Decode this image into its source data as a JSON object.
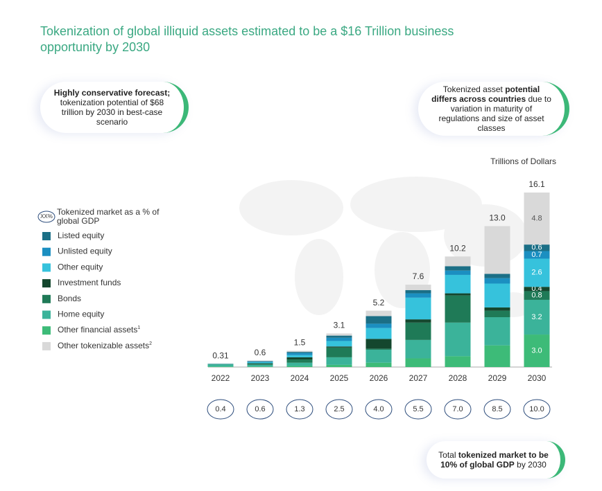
{
  "chart_data": {
    "type": "stacked_bar",
    "title": "Tokenization of global illiquid assets estimated to be a $16 Trillion business opportunity by 2030",
    "unit_label": "Trillions of Dollars",
    "categories": [
      "2022",
      "2023",
      "2024",
      "2025",
      "2026",
      "2027",
      "2028",
      "2029",
      "2030"
    ],
    "series": [
      {
        "name": "Listed equity",
        "color": "#1b6f86",
        "values": [
          0.01,
          0.05,
          0.1,
          0.2,
          0.7,
          0.3,
          0.4,
          0.4,
          0.6
        ],
        "value_labels": [
          null,
          null,
          null,
          null,
          null,
          null,
          null,
          null,
          "0.6"
        ]
      },
      {
        "name": "Unlisted equity",
        "color": "#1b8fc1",
        "values": [
          0.01,
          0.05,
          0.2,
          0.3,
          0.4,
          0.4,
          0.4,
          0.5,
          0.7
        ],
        "value_labels": [
          null,
          null,
          null,
          null,
          null,
          null,
          null,
          null,
          "0.7"
        ]
      },
      {
        "name": "Other equity",
        "color": "#36c2dc",
        "values": [
          0.01,
          0.1,
          0.2,
          0.5,
          1.0,
          2.0,
          1.7,
          2.2,
          2.6
        ],
        "value_labels": [
          null,
          null,
          null,
          null,
          null,
          null,
          null,
          null,
          "2.6"
        ]
      },
      {
        "name": "Investment funds",
        "color": "#14472e",
        "values": [
          0.01,
          0.05,
          0.2,
          0.1,
          0.9,
          0.3,
          0.2,
          0.3,
          0.4
        ],
        "value_labels": [
          null,
          null,
          null,
          null,
          null,
          null,
          null,
          null,
          "0.4"
        ]
      },
      {
        "name": "Bonds",
        "color": "#1f7a57",
        "values": [
          0.02,
          0.1,
          0.3,
          0.9,
          0.1,
          1.6,
          2.5,
          0.6,
          0.8
        ],
        "value_labels": [
          null,
          null,
          null,
          null,
          null,
          null,
          null,
          null,
          "0.8"
        ]
      },
      {
        "name": "Home equity",
        "color": "#3bb39a",
        "values": [
          0.2,
          0.15,
          0.3,
          0.7,
          1.2,
          1.7,
          3.1,
          2.6,
          3.2
        ],
        "value_labels": [
          null,
          null,
          null,
          null,
          null,
          null,
          null,
          null,
          "3.2"
        ]
      },
      {
        "name": "Other financial assets",
        "footnote": "1",
        "color": "#3dbb78",
        "values": [
          0.05,
          0.05,
          0.1,
          0.2,
          0.4,
          0.8,
          1.0,
          2.0,
          3.0
        ],
        "value_labels": [
          null,
          null,
          null,
          null,
          null,
          null,
          null,
          null,
          "3.0"
        ]
      },
      {
        "name": "Other tokenizable assets",
        "footnote": "2",
        "color": "#d9d9d9",
        "values": [
          0,
          0.05,
          0.1,
          0.2,
          0.5,
          0.5,
          0.9,
          4.4,
          4.8
        ],
        "value_labels": [
          null,
          null,
          null,
          null,
          null,
          null,
          null,
          null,
          "4.8"
        ]
      }
    ],
    "totals": [
      0.31,
      0.6,
      1.5,
      3.1,
      5.2,
      7.6,
      10.2,
      13.0,
      16.1
    ],
    "total_labels": [
      "0.31",
      "0.6",
      "1.5",
      "3.1",
      "5.2",
      "7.6",
      "10.2",
      "13.0",
      "16.1"
    ],
    "gdp_legend": {
      "icon": "XX%",
      "label": "Tokenized market as a % of global GDP"
    },
    "gdp_pct": [
      0.4,
      0.6,
      1.3,
      2.5,
      4.0,
      5.5,
      7.0,
      8.5,
      10.0
    ],
    "gdp_pct_labels": [
      "0.4",
      "0.6",
      "1.3",
      "2.5",
      "4.0",
      "5.5",
      "7.0",
      "8.5",
      "10.0"
    ],
    "callouts": [
      {
        "parts": [
          {
            "text": "Highly conservative forecast;",
            "bold": true
          },
          {
            "text": " tokenization potential of $68 trillion by 2030 in best-case scenario",
            "bold": false
          }
        ]
      },
      {
        "parts": [
          {
            "text": "Tokenized asset ",
            "bold": false
          },
          {
            "text": "potential differs across countries",
            "bold": true
          },
          {
            "text": " due to variation in maturity of regulations and size of asset classes",
            "bold": false
          }
        ]
      },
      {
        "parts": [
          {
            "text": "Total ",
            "bold": false
          },
          {
            "text": "tokenized market to be 10% of global GDP",
            "bold": true
          },
          {
            "text": " by 2030",
            "bold": false
          }
        ]
      }
    ]
  }
}
